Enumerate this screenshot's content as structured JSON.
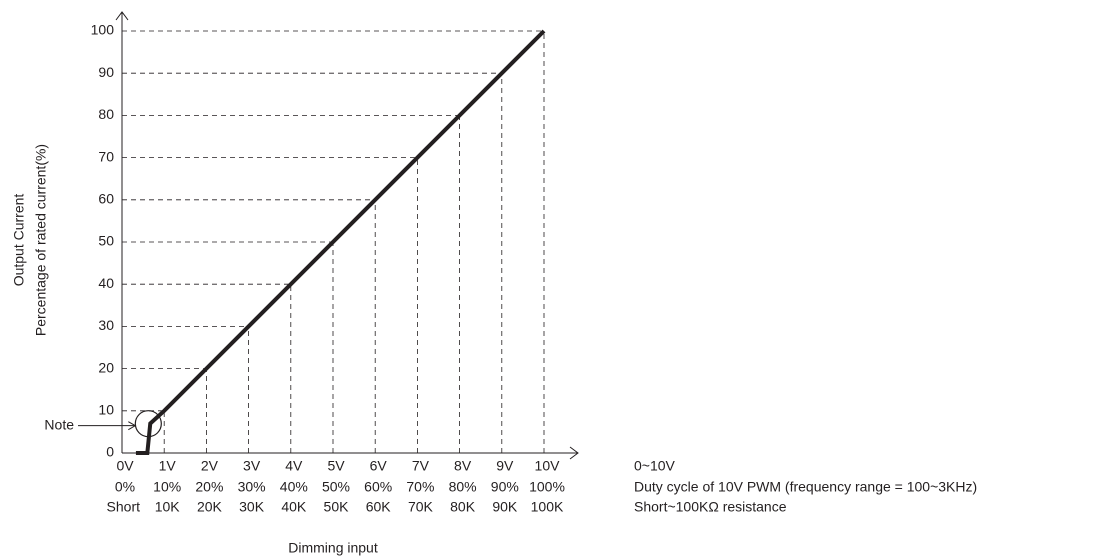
{
  "chart_data": {
    "type": "line",
    "y_label_lines": [
      "Output Current",
      "Percentage of rated current(%)"
    ],
    "x_label": "Dimming input",
    "x": [
      0.33,
      0.6,
      0.67,
      1,
      10
    ],
    "series": [
      {
        "color": "#231f20",
        "values": [
          0,
          0,
          7,
          10,
          100
        ]
      }
    ],
    "xlim": [
      0,
      10
    ],
    "ylim": [
      0,
      100
    ],
    "xticks": [
      {
        "value": 0,
        "label": "0V"
      },
      {
        "value": 1,
        "label": "1V"
      },
      {
        "value": 2,
        "label": "2V"
      },
      {
        "value": 3,
        "label": "3V"
      },
      {
        "value": 4,
        "label": "4V"
      },
      {
        "value": 5,
        "label": "5V"
      },
      {
        "value": 6,
        "label": "6V"
      },
      {
        "value": 7,
        "label": "7V"
      },
      {
        "value": 8,
        "label": "8V"
      },
      {
        "value": 9,
        "label": "9V"
      },
      {
        "value": 10,
        "label": "10V"
      }
    ],
    "xtick_labels_pwm": [
      "0%",
      "10%",
      "20%",
      "30%",
      "40%",
      "50%",
      "60%",
      "70%",
      "80%",
      "90%",
      "100%"
    ],
    "xtick_labels_resistance": [
      "Short",
      "10K",
      "20K",
      "30K",
      "40K",
      "50K",
      "60K",
      "70K",
      "80K",
      "90K",
      "100K"
    ],
    "yticks": [
      0,
      10,
      20,
      30,
      40,
      50,
      60,
      70,
      80,
      90,
      100
    ],
    "grid": "dashed",
    "annotation": {
      "text": "Note",
      "x": 0.6,
      "y": 6
    },
    "input_notes": [
      "0~10V",
      "Duty cycle of 10V PWM (frequency range = 100~3KHz)",
      "Short~100KΩ resistance"
    ]
  }
}
